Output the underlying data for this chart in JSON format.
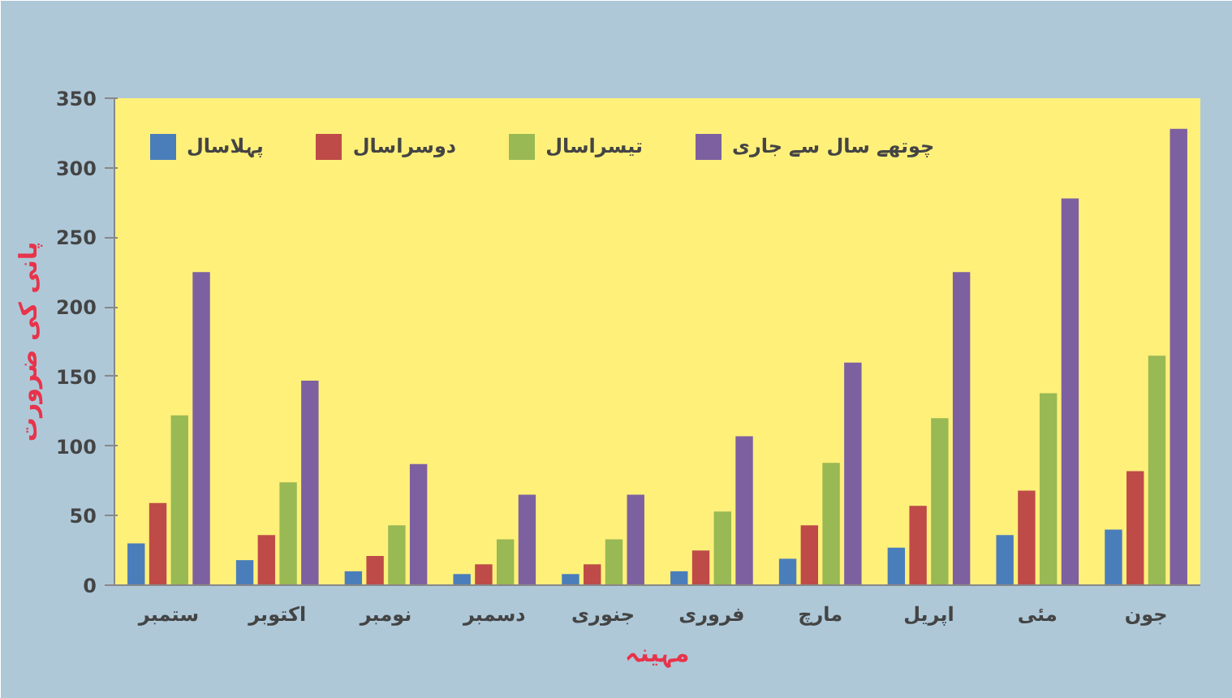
{
  "chart_data": {
    "type": "bar",
    "xlabel": "مہینہ",
    "ylabel": "پانی کی ضرورت",
    "categories": [
      "ستمبر",
      "اکتوبر",
      "نومبر",
      "دسمبر",
      "جنوری",
      "فروری",
      "مارچ",
      "اپریل",
      "مئی",
      "جون"
    ],
    "series": [
      {
        "name": "پہلاسال",
        "color": "#4a7ebb",
        "values": [
          30,
          18,
          10,
          8,
          8,
          10,
          19,
          27,
          36,
          40
        ]
      },
      {
        "name": "دوسراسال",
        "color": "#be4b48",
        "values": [
          59,
          36,
          21,
          15,
          15,
          25,
          43,
          57,
          68,
          82
        ]
      },
      {
        "name": "تیسراسال",
        "color": "#98b954",
        "values": [
          122,
          74,
          43,
          33,
          33,
          53,
          88,
          120,
          138,
          165
        ]
      },
      {
        "name": "چوتھے سال سے جاری",
        "color": "#7d60a0",
        "values": [
          225,
          147,
          87,
          65,
          65,
          107,
          160,
          225,
          278,
          328
        ]
      }
    ],
    "ylim": [
      0,
      350
    ],
    "yticks": [
      0,
      50,
      100,
      150,
      200,
      250,
      300,
      350
    ],
    "grid": false,
    "legend": "top left"
  }
}
